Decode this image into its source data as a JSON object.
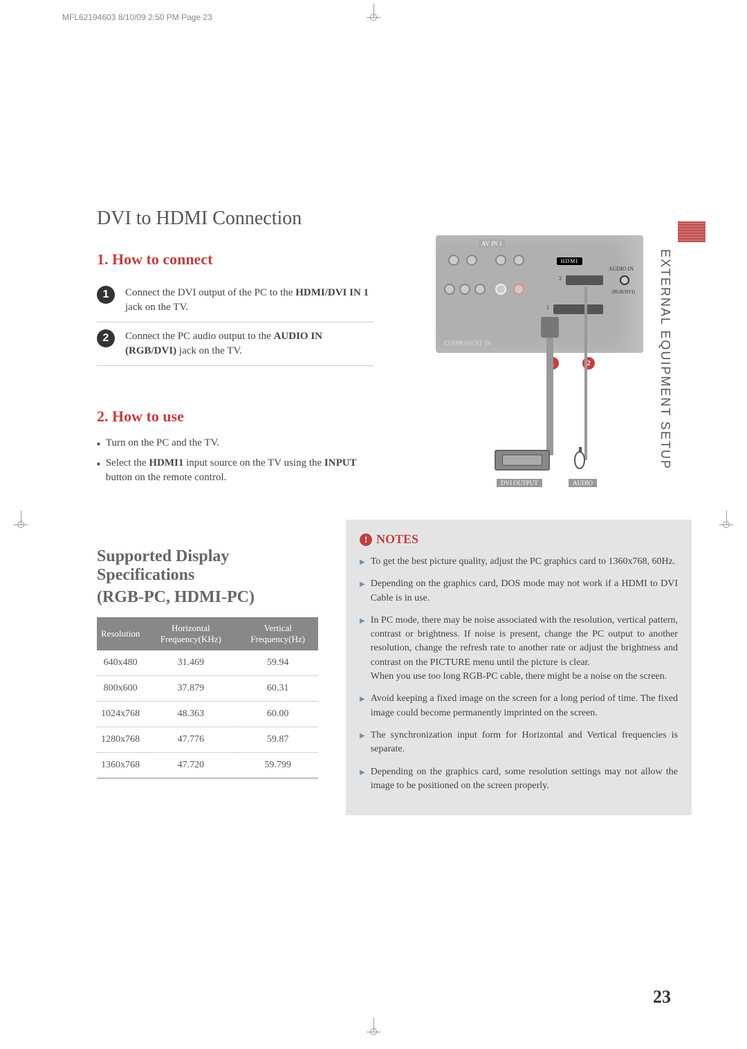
{
  "meta": {
    "header_line": "MFL62194603  8/10/09 2:50 PM  Page 23",
    "vertical_section_title": "EXTERNAL EQUIPMENT SETUP",
    "page_number": "23"
  },
  "main_title": "DVI to HDMI Connection",
  "how_to_connect": {
    "heading": "1. How to connect",
    "steps": [
      {
        "num": "1",
        "text_pre": "Connect the DVI output of the PC to the ",
        "bold": "HDMI/DVI IN 1",
        "text_post": " jack on the TV."
      },
      {
        "num": "2",
        "text_pre": "Connect the PC audio output to the ",
        "bold": "AUDIO IN (RGB/DVI)",
        "text_post": " jack on the TV."
      }
    ]
  },
  "how_to_use": {
    "heading": "2. How to use",
    "bullets": [
      {
        "pre": "Turn on the PC and the TV.",
        "bold": "",
        "post": ""
      },
      {
        "pre": "Select the ",
        "bold": "HDMI1",
        "mid": " input source on the TV using the ",
        "bold2": "INPUT",
        "post": " button on the remote control."
      }
    ]
  },
  "diagram": {
    "av_in": "AV IN 1",
    "component_in": "COMPONENT IN",
    "hdmi_logo": "HDMI",
    "audio_in": "AUDIO IN",
    "rgb_dvi": "(RGB/DVI)",
    "port1": "1",
    "port2": "2",
    "badge1": "1",
    "badge2": "2",
    "dvi_output": "DVI OUTPUT",
    "audio": "AUDIO",
    "colors": {
      "panel": "#b0b0b0",
      "badge": "#c04040"
    }
  },
  "specs": {
    "heading_l1": "Supported Display Specifications",
    "heading_l2": "(RGB-PC, HDMI-PC)",
    "columns": [
      "Resolution",
      "Horizontal Frequency(KHz)",
      "Vertical Frequency(Hz)"
    ],
    "rows": [
      [
        "640x480",
        "31.469",
        "59.94"
      ],
      [
        "800x600",
        "37.879",
        "60.31"
      ],
      [
        "1024x768",
        "48.363",
        "60.00"
      ],
      [
        "1280x768",
        "47.776",
        "59.87"
      ],
      [
        "1360x768",
        "47.720",
        "59.799"
      ]
    ],
    "header_bg": "#888888",
    "header_fg": "#ffffff"
  },
  "notes": {
    "heading": "NOTES",
    "items": [
      "To get the best picture quality, adjust the PC graphics card to 1360x768, 60Hz.",
      "Depending on the graphics card, DOS mode may not work if a HDMI to DVI Cable is in use.",
      "In PC mode, there may be noise associated with the resolution, vertical pattern, contrast or brightness. If noise is present, change the PC output to another resolution, change the refresh rate to another rate or adjust the brightness and contrast on the PICTURE menu until the picture is clear.\nWhen you use too long RGB-PC cable, there might be a noise on the screen.",
      "Avoid keeping a fixed image on the screen for a long period of time. The fixed image could become permanently imprinted on the screen.",
      "The synchronization input form for Horizontal and Vertical frequencies is separate.",
      "Depending on the graphics card, some resolution settings may not allow the image to be positioned on the screen properly."
    ]
  }
}
